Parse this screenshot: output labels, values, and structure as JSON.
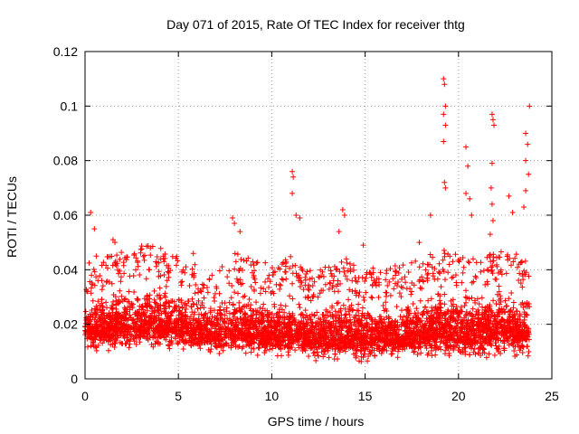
{
  "chart_data": {
    "type": "scatter",
    "title": "Day 071 of 2015, Rate Of TEC Index for receiver thtg",
    "xlabel": "GPS time / hours",
    "ylabel": "ROTI / TECUs",
    "xlim": [
      0,
      25
    ],
    "ylim": [
      0,
      0.12
    ],
    "xticks": [
      0,
      5,
      10,
      15,
      20,
      25
    ],
    "xtick_labels": [
      "0",
      "5",
      "10",
      "15",
      "20",
      "25"
    ],
    "yticks": [
      0,
      0.02,
      0.04,
      0.06,
      0.08,
      0.1,
      0.12
    ],
    "ytick_labels": [
      "0",
      "0.02",
      "0.04",
      "0.06",
      "0.08",
      "0.1",
      "0.12"
    ],
    "grid": true,
    "marker": "+",
    "color": "#ff0000",
    "series": [
      {
        "name": "ROTI",
        "points": [
          [
            0.3,
            0.061
          ],
          [
            0.5,
            0.055
          ],
          [
            0.6,
            0.045
          ],
          [
            1.5,
            0.051
          ],
          [
            1.6,
            0.05
          ],
          [
            3.5,
            0.048
          ],
          [
            4.2,
            0.045
          ],
          [
            5.8,
            0.046
          ],
          [
            7.9,
            0.059
          ],
          [
            8.0,
            0.057
          ],
          [
            8.3,
            0.054
          ],
          [
            11.1,
            0.076
          ],
          [
            11.15,
            0.074
          ],
          [
            11.1,
            0.068
          ],
          [
            11.3,
            0.06
          ],
          [
            11.5,
            0.059
          ],
          [
            13.8,
            0.062
          ],
          [
            13.9,
            0.06
          ],
          [
            13.6,
            0.054
          ],
          [
            14.9,
            0.049
          ],
          [
            17.9,
            0.05
          ],
          [
            18.5,
            0.06
          ],
          [
            19.2,
            0.11
          ],
          [
            19.25,
            0.108
          ],
          [
            19.3,
            0.1
          ],
          [
            19.2,
            0.097
          ],
          [
            19.3,
            0.093
          ],
          [
            19.2,
            0.087
          ],
          [
            19.25,
            0.072
          ],
          [
            19.3,
            0.07
          ],
          [
            20.4,
            0.085
          ],
          [
            20.5,
            0.078
          ],
          [
            20.4,
            0.068
          ],
          [
            20.6,
            0.066
          ],
          [
            20.7,
            0.06
          ],
          [
            21.8,
            0.097
          ],
          [
            21.85,
            0.095
          ],
          [
            21.9,
            0.093
          ],
          [
            21.8,
            0.079
          ],
          [
            21.75,
            0.07
          ],
          [
            21.8,
            0.064
          ],
          [
            21.85,
            0.058
          ],
          [
            21.7,
            0.053
          ],
          [
            22.7,
            0.067
          ],
          [
            22.9,
            0.061
          ],
          [
            23.6,
            0.09
          ],
          [
            23.7,
            0.086
          ],
          [
            23.6,
            0.08
          ],
          [
            23.75,
            0.075
          ],
          [
            23.6,
            0.069
          ],
          [
            23.8,
            0.1
          ],
          [
            23.5,
            0.063
          ]
        ],
        "envelope": {
          "description": "dense ROTI values sampled across the day",
          "hours": [
            0,
            1,
            2,
            3,
            4,
            5,
            6,
            7,
            8,
            9,
            10,
            11,
            12,
            13,
            14,
            15,
            16,
            17,
            18,
            19,
            20,
            21,
            22,
            23,
            23.8
          ],
          "low": [
            0.01,
            0.01,
            0.01,
            0.01,
            0.01,
            0.01,
            0.01,
            0.009,
            0.008,
            0.008,
            0.008,
            0.007,
            0.007,
            0.006,
            0.006,
            0.006,
            0.007,
            0.007,
            0.007,
            0.007,
            0.007,
            0.007,
            0.008,
            0.007,
            0.008
          ],
          "high": [
            0.03,
            0.033,
            0.035,
            0.038,
            0.037,
            0.034,
            0.03,
            0.028,
            0.036,
            0.032,
            0.03,
            0.033,
            0.028,
            0.03,
            0.032,
            0.028,
            0.03,
            0.03,
            0.032,
            0.036,
            0.034,
            0.033,
            0.035,
            0.034,
            0.032
          ]
        }
      }
    ]
  }
}
